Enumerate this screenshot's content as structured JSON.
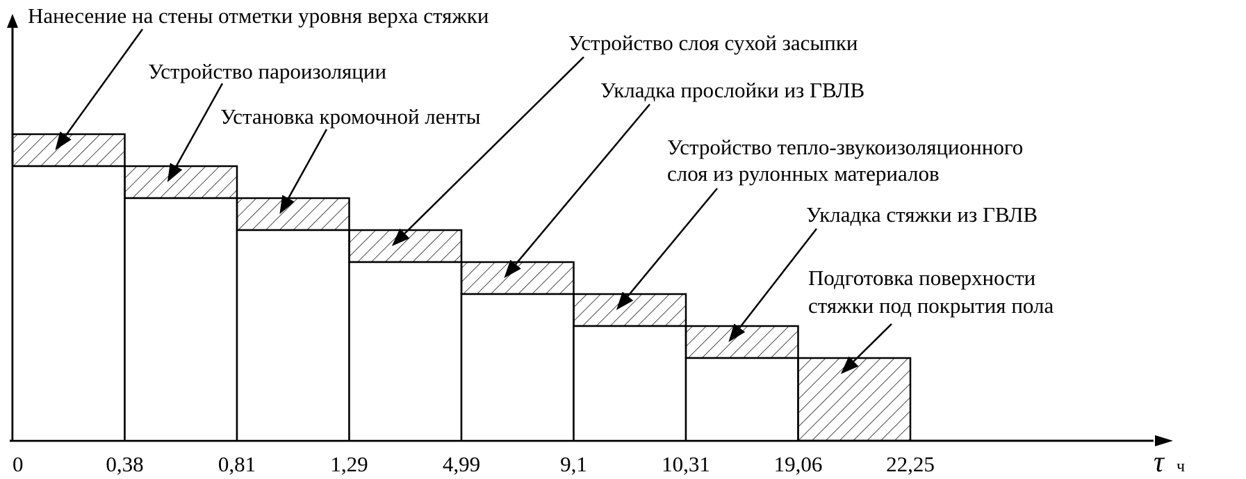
{
  "chart_data": {
    "type": "bar",
    "title": "",
    "xlabel": "τ",
    "xunit": "ч",
    "ylabel": "",
    "x_ticks": [
      "0",
      "0,38",
      "0,81",
      "1,29",
      "4,99",
      "9,1",
      "10,31",
      "19,06",
      "22,25"
    ],
    "x_ticks_values": [
      0,
      0.38,
      0.81,
      1.29,
      4.99,
      9.1,
      10.31,
      19.06,
      22.25
    ],
    "grid": false,
    "legend": "none",
    "fill_pattern": "diagonal-hatch",
    "activities": [
      {
        "name": [
          "Нанесение на стены отметки уровня верха стяжки"
        ],
        "start": 0,
        "end": 0.38
      },
      {
        "name": [
          "Устройство пароизоляции"
        ],
        "start": 0.38,
        "end": 0.81
      },
      {
        "name": [
          "Установка кромочной ленты"
        ],
        "start": 0.81,
        "end": 1.29
      },
      {
        "name": [
          "Устройство слоя сухой засыпки"
        ],
        "start": 1.29,
        "end": 4.99
      },
      {
        "name": [
          "Укладка прослойки из ГВЛВ"
        ],
        "start": 4.99,
        "end": 9.1
      },
      {
        "name": [
          "Устройство тепло-звукоизоляционного",
          "слоя  из рулонных материалов"
        ],
        "start": 9.1,
        "end": 10.31
      },
      {
        "name": [
          "Укладка стяжки из ГВЛВ"
        ],
        "start": 10.31,
        "end": 19.06
      },
      {
        "name": [
          "Подготовка поверхности",
          "стяжки под покрытия пола"
        ],
        "start": 19.06,
        "end": 22.25
      }
    ]
  }
}
